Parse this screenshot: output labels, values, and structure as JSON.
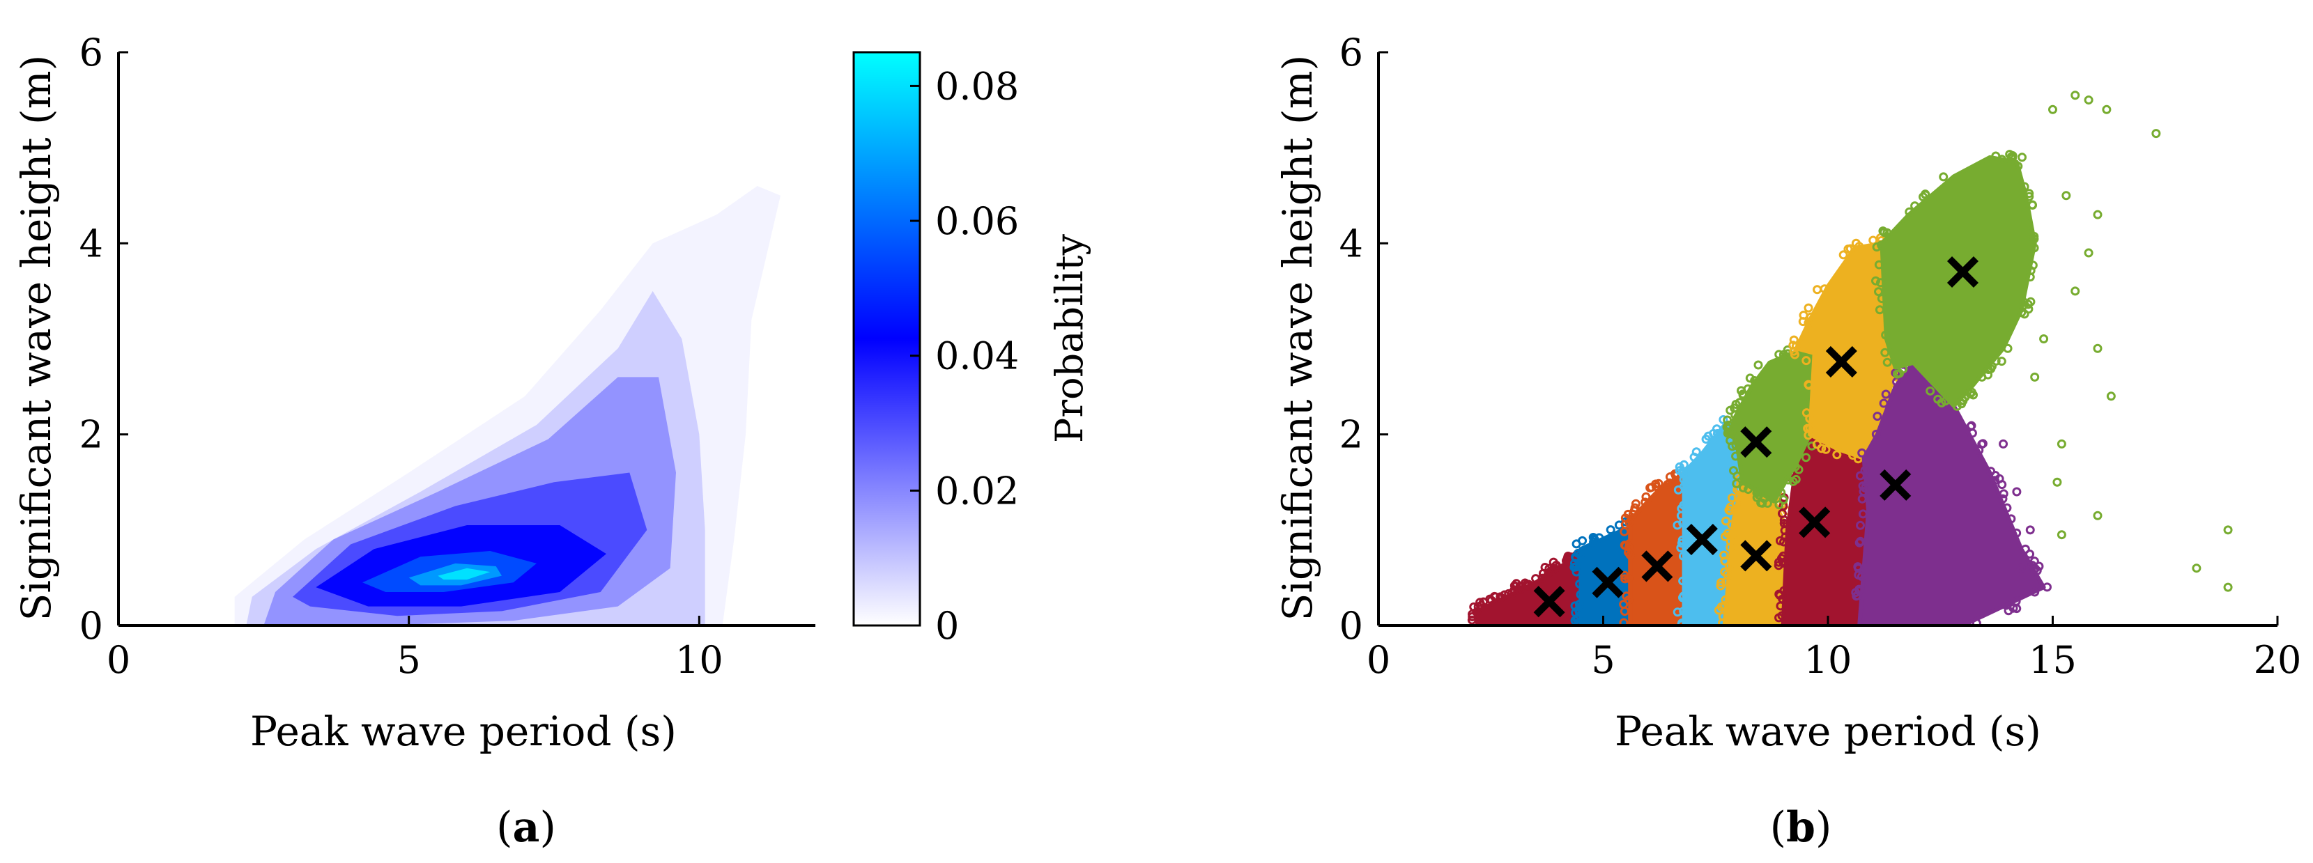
{
  "chart_data": [
    {
      "type": "heatmap",
      "panel_label": "(a)",
      "panel_letter": "a",
      "xlabel": "Peak wave period (s)",
      "ylabel": "Significant wave height (m)",
      "xlim": [
        0,
        12
      ],
      "ylim": [
        0,
        6
      ],
      "xticks": [
        0,
        5,
        10
      ],
      "yticks": [
        0,
        2,
        4,
        6
      ],
      "colorbar": {
        "label": "Probability",
        "range": [
          0,
          0.085
        ],
        "ticks": [
          0,
          0.02,
          0.04,
          0.06,
          0.08
        ],
        "tick_labels": [
          "0",
          "0.02",
          "0.04",
          "0.06",
          "0.08"
        ],
        "colors": [
          "#ffffff",
          "#0000ff",
          "#00ffff"
        ]
      },
      "density_regions": [
        {
          "level": 0.002,
          "boundary": [
            [
              2.0,
              0.0
            ],
            [
              2.0,
              0.3
            ],
            [
              3.2,
              0.9
            ],
            [
              5.0,
              1.6
            ],
            [
              7.0,
              2.4
            ],
            [
              8.3,
              3.3
            ],
            [
              9.2,
              4.0
            ],
            [
              10.3,
              4.3
            ],
            [
              11.0,
              4.6
            ],
            [
              11.4,
              4.5
            ],
            [
              10.9,
              3.2
            ],
            [
              10.8,
              2.0
            ],
            [
              10.6,
              0.9
            ],
            [
              10.4,
              0.0
            ]
          ]
        },
        {
          "level": 0.008,
          "boundary": [
            [
              2.2,
              0.0
            ],
            [
              2.3,
              0.3
            ],
            [
              3.4,
              0.8
            ],
            [
              5.2,
              1.4
            ],
            [
              7.2,
              2.1
            ],
            [
              8.6,
              2.9
            ],
            [
              9.2,
              3.5
            ],
            [
              9.7,
              3.0
            ],
            [
              10.0,
              2.0
            ],
            [
              10.1,
              1.0
            ],
            [
              10.1,
              0.0
            ]
          ]
        },
        {
          "level": 0.018,
          "boundary": [
            [
              2.5,
              0.0
            ],
            [
              2.7,
              0.35
            ],
            [
              3.7,
              0.9
            ],
            [
              5.5,
              1.4
            ],
            [
              7.4,
              1.95
            ],
            [
              8.6,
              2.6
            ],
            [
              9.3,
              2.6
            ],
            [
              9.6,
              1.6
            ],
            [
              9.5,
              0.6
            ],
            [
              8.6,
              0.2
            ],
            [
              6.8,
              0.05
            ],
            [
              4.5,
              0.0
            ]
          ]
        },
        {
          "level": 0.03,
          "boundary": [
            [
              3.0,
              0.3
            ],
            [
              4.0,
              0.85
            ],
            [
              5.8,
              1.25
            ],
            [
              7.5,
              1.5
            ],
            [
              8.8,
              1.6
            ],
            [
              9.1,
              1.0
            ],
            [
              8.3,
              0.35
            ],
            [
              6.6,
              0.15
            ],
            [
              4.8,
              0.1
            ],
            [
              3.3,
              0.2
            ]
          ]
        },
        {
          "level": 0.042,
          "boundary": [
            [
              3.4,
              0.4
            ],
            [
              4.4,
              0.8
            ],
            [
              6.0,
              1.05
            ],
            [
              7.6,
              1.05
            ],
            [
              8.4,
              0.75
            ],
            [
              7.6,
              0.35
            ],
            [
              5.9,
              0.2
            ],
            [
              4.3,
              0.2
            ]
          ]
        },
        {
          "level": 0.055,
          "boundary": [
            [
              4.2,
              0.45
            ],
            [
              5.2,
              0.72
            ],
            [
              6.4,
              0.78
            ],
            [
              7.2,
              0.65
            ],
            [
              6.8,
              0.45
            ],
            [
              5.6,
              0.35
            ],
            [
              4.6,
              0.35
            ]
          ]
        },
        {
          "level": 0.068,
          "boundary": [
            [
              5.0,
              0.5
            ],
            [
              5.8,
              0.65
            ],
            [
              6.5,
              0.62
            ],
            [
              6.6,
              0.52
            ],
            [
              5.9,
              0.42
            ],
            [
              5.2,
              0.42
            ]
          ]
        },
        {
          "level": 0.08,
          "boundary": [
            [
              5.5,
              0.52
            ],
            [
              6.0,
              0.6
            ],
            [
              6.4,
              0.56
            ],
            [
              6.0,
              0.48
            ],
            [
              5.6,
              0.48
            ]
          ]
        }
      ]
    },
    {
      "type": "scatter",
      "panel_label": "(b)",
      "panel_letter": "b",
      "xlabel": "Peak wave period (s)",
      "ylabel": "Significant wave height (m)",
      "xlim": [
        0,
        20
      ],
      "ylim": [
        0,
        6
      ],
      "xticks": [
        0,
        5,
        10,
        15,
        20
      ],
      "yticks": [
        0,
        2,
        4,
        6
      ],
      "clusters": [
        {
          "color": "#a2142f",
          "centroid": [
            3.8,
            0.25
          ],
          "region": [
            [
              2.2,
              0.0
            ],
            [
              2.2,
              0.15
            ],
            [
              3.5,
              0.45
            ],
            [
              4.5,
              0.75
            ],
            [
              4.6,
              0.0
            ]
          ]
        },
        {
          "color": "#0072bd",
          "centroid": [
            5.1,
            0.45
          ],
          "region": [
            [
              4.5,
              0.0
            ],
            [
              4.5,
              0.8
            ],
            [
              5.2,
              0.95
            ],
            [
              5.7,
              1.05
            ],
            [
              5.7,
              0.0
            ]
          ]
        },
        {
          "color": "#d95319",
          "centroid": [
            6.2,
            0.62
          ],
          "region": [
            [
              5.6,
              0.0
            ],
            [
              5.6,
              1.1
            ],
            [
              6.3,
              1.45
            ],
            [
              6.8,
              1.55
            ],
            [
              6.9,
              0.0
            ]
          ]
        },
        {
          "color": "#4dbeee",
          "centroid": [
            7.2,
            0.9
          ],
          "region": [
            [
              6.8,
              0.0
            ],
            [
              6.8,
              1.6
            ],
            [
              7.2,
              1.8
            ],
            [
              7.7,
              2.1
            ],
            [
              8.1,
              2.15
            ],
            [
              7.9,
              1.1
            ],
            [
              7.7,
              0.0
            ]
          ]
        },
        {
          "color": "#edb120",
          "centroid": [
            8.4,
            0.73
          ],
          "region": [
            [
              7.7,
              0.0
            ],
            [
              7.9,
              1.1
            ],
            [
              8.1,
              1.5
            ],
            [
              8.8,
              1.3
            ],
            [
              9.1,
              1.0
            ],
            [
              9.0,
              0.0
            ]
          ]
        },
        {
          "color": "#a2142f",
          "centroid": [
            9.7,
            1.08
          ],
          "region": [
            [
              9.0,
              0.0
            ],
            [
              9.1,
              1.0
            ],
            [
              9.3,
              1.7
            ],
            [
              9.6,
              2.0
            ],
            [
              10.2,
              1.85
            ],
            [
              10.8,
              1.75
            ],
            [
              10.9,
              1.2
            ],
            [
              10.7,
              0.0
            ]
          ]
        },
        {
          "color": "#77ac30",
          "centroid": [
            8.4,
            1.92
          ],
          "region": [
            [
              7.9,
              2.15
            ],
            [
              8.3,
              2.5
            ],
            [
              8.7,
              2.75
            ],
            [
              9.2,
              2.85
            ],
            [
              9.7,
              2.85
            ],
            [
              9.6,
              2.3
            ],
            [
              9.6,
              2.0
            ],
            [
              9.3,
              1.7
            ],
            [
              8.8,
              1.3
            ],
            [
              8.1,
              1.5
            ]
          ]
        },
        {
          "color": "#edb120",
          "centroid": [
            10.3,
            2.76
          ],
          "region": [
            [
              9.3,
              2.9
            ],
            [
              9.6,
              3.2
            ],
            [
              10.0,
              3.55
            ],
            [
              10.6,
              3.95
            ],
            [
              11.2,
              4.0
            ],
            [
              11.3,
              3.0
            ],
            [
              11.5,
              2.7
            ],
            [
              11.1,
              2.0
            ],
            [
              10.8,
              1.75
            ],
            [
              10.2,
              1.85
            ],
            [
              9.6,
              2.0
            ],
            [
              9.7,
              2.85
            ]
          ]
        },
        {
          "color": "#7e2f8e",
          "centroid": [
            11.5,
            1.47
          ],
          "region": [
            [
              10.7,
              0.0
            ],
            [
              10.9,
              1.2
            ],
            [
              10.8,
              1.75
            ],
            [
              11.1,
              2.0
            ],
            [
              11.5,
              2.5
            ],
            [
              11.9,
              2.75
            ],
            [
              12.8,
              2.3
            ],
            [
              13.6,
              1.6
            ],
            [
              14.3,
              0.8
            ],
            [
              14.8,
              0.4
            ],
            [
              13.0,
              0.0
            ]
          ]
        },
        {
          "color": "#77ac30",
          "centroid": [
            13.0,
            3.7
          ],
          "region": [
            [
              11.2,
              4.0
            ],
            [
              11.8,
              4.3
            ],
            [
              12.8,
              4.7
            ],
            [
              13.6,
              4.9
            ],
            [
              14.2,
              4.85
            ],
            [
              14.4,
              4.5
            ],
            [
              14.6,
              4.0
            ],
            [
              14.3,
              3.3
            ],
            [
              13.9,
              2.9
            ],
            [
              13.2,
              2.5
            ],
            [
              12.8,
              2.3
            ],
            [
              11.9,
              2.75
            ],
            [
              11.5,
              2.7
            ],
            [
              11.3,
              3.0
            ]
          ]
        }
      ],
      "outliers": [
        {
          "color": "#77ac30",
          "points": [
            [
              15.0,
              5.4
            ],
            [
              15.5,
              5.55
            ],
            [
              15.8,
              5.5
            ],
            [
              16.2,
              5.4
            ],
            [
              17.3,
              5.15
            ],
            [
              15.3,
              4.5
            ],
            [
              16.0,
              4.3
            ],
            [
              15.8,
              3.9
            ],
            [
              15.5,
              3.5
            ],
            [
              16.0,
              2.9
            ],
            [
              16.3,
              2.4
            ],
            [
              15.2,
              1.9
            ],
            [
              15.1,
              1.5
            ],
            [
              16.0,
              1.15
            ],
            [
              15.2,
              0.95
            ],
            [
              18.2,
              0.6
            ],
            [
              18.9,
              1.0
            ],
            [
              18.9,
              0.4
            ],
            [
              14.8,
              3.0
            ],
            [
              14.6,
              2.6
            ]
          ]
        },
        {
          "color": "#7e2f8e",
          "points": [
            [
              14.2,
              1.4
            ],
            [
              14.5,
              1.0
            ],
            [
              14.3,
              0.6
            ],
            [
              14.6,
              0.35
            ],
            [
              13.9,
              1.9
            ]
          ]
        }
      ]
    }
  ]
}
